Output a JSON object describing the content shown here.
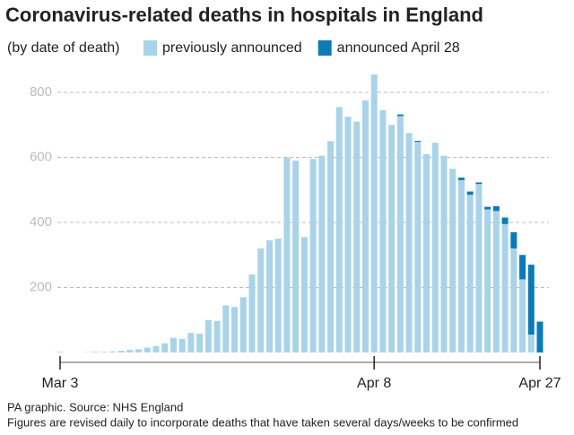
{
  "chart_data": {
    "type": "stacked_bar",
    "title": "Coronavirus-related deaths in hospitals in England",
    "subtitle": "(by date of death)",
    "categories": [
      "Mar 3",
      null,
      null,
      null,
      null,
      null,
      null,
      null,
      null,
      null,
      null,
      null,
      null,
      null,
      null,
      null,
      null,
      null,
      null,
      null,
      null,
      null,
      null,
      null,
      null,
      null,
      null,
      null,
      null,
      null,
      null,
      null,
      null,
      null,
      null,
      null,
      "Apr 8",
      null,
      null,
      null,
      null,
      null,
      null,
      null,
      null,
      null,
      null,
      null,
      null,
      null,
      null,
      null,
      null,
      null,
      null,
      "Apr 27"
    ],
    "series": [
      {
        "name": "previously announced",
        "color": "#a9d3e9",
        "values": [
          2,
          0,
          0,
          1,
          2,
          2,
          3,
          5,
          8,
          10,
          15,
          20,
          28,
          45,
          42,
          60,
          58,
          100,
          97,
          145,
          140,
          170,
          240,
          320,
          345,
          350,
          600,
          590,
          355,
          595,
          605,
          650,
          755,
          725,
          710,
          775,
          855,
          745,
          700,
          727,
          675,
          648,
          610,
          645,
          605,
          565,
          530,
          485,
          518,
          440,
          435,
          395,
          320,
          225,
          55,
          0
        ]
      },
      {
        "name": "announced April 28",
        "color": "#0b7bb5",
        "values": [
          0,
          0,
          0,
          0,
          0,
          0,
          0,
          0,
          0,
          0,
          0,
          0,
          0,
          0,
          0,
          0,
          0,
          0,
          0,
          0,
          0,
          0,
          0,
          0,
          0,
          0,
          0,
          0,
          0,
          0,
          0,
          0,
          0,
          0,
          0,
          0,
          0,
          0,
          0,
          5,
          0,
          3,
          0,
          0,
          0,
          0,
          8,
          10,
          5,
          8,
          15,
          20,
          50,
          75,
          215,
          95
        ]
      }
    ],
    "ylim": [
      0,
      870
    ],
    "yticks": [
      200,
      400,
      600,
      800
    ],
    "grid": true,
    "source": "PA graphic. Source: NHS England",
    "note": "Figures are revised daily to incorporate deaths that have taken several days/weeks to be confirmed"
  }
}
